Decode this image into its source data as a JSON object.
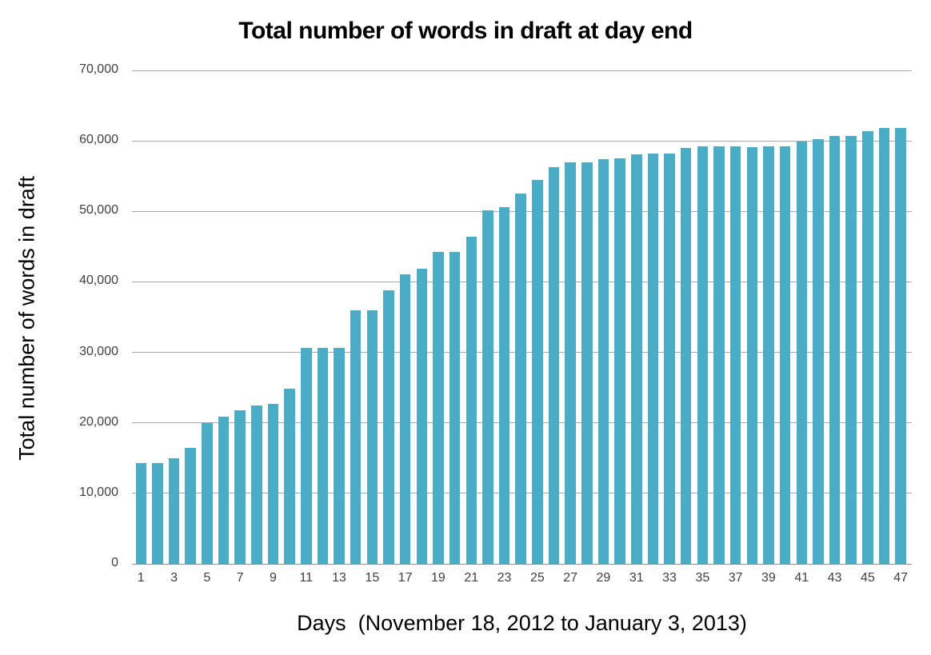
{
  "chart_data": {
    "type": "bar",
    "title": "Total number of words in draft at day end",
    "xlabel": "Days  (November 18, 2012 to January 3, 2013)",
    "ylabel": "Total number of words in draft",
    "categories": [
      1,
      2,
      3,
      4,
      5,
      6,
      7,
      8,
      9,
      10,
      11,
      12,
      13,
      14,
      15,
      16,
      17,
      18,
      19,
      20,
      21,
      22,
      23,
      24,
      25,
      26,
      27,
      28,
      29,
      30,
      31,
      32,
      33,
      34,
      35,
      36,
      37,
      38,
      39,
      40,
      41,
      42,
      43,
      44,
      45,
      46,
      47
    ],
    "values": [
      14300,
      14300,
      15000,
      16400,
      20000,
      20900,
      21800,
      22500,
      22700,
      24800,
      30600,
      30600,
      30600,
      36000,
      36000,
      38800,
      41100,
      41900,
      44200,
      44200,
      46400,
      50200,
      50600,
      52500,
      54500,
      56300,
      57000,
      57000,
      57400,
      57500,
      58100,
      58200,
      58200,
      59000,
      59200,
      59200,
      59200,
      59100,
      59200,
      59200,
      59900,
      60300,
      60700,
      60700,
      61400,
      61800,
      61800
    ],
    "xtick_labels": [
      "1",
      "3",
      "5",
      "7",
      "9",
      "11",
      "13",
      "15",
      "17",
      "19",
      "21",
      "23",
      "25",
      "27",
      "29",
      "31",
      "33",
      "35",
      "37",
      "39",
      "41",
      "43",
      "45",
      "47"
    ],
    "ytick_values": [
      0,
      10000,
      20000,
      30000,
      40000,
      50000,
      60000,
      70000
    ],
    "ytick_labels": [
      "0",
      "10,000",
      "20,000",
      "30,000",
      "40,000",
      "50,000",
      "60,000",
      "70,000"
    ],
    "ylim": [
      0,
      70000
    ],
    "grid": "horizontal gridlines every 10,000",
    "legend": "none",
    "colors": {
      "bar": "#4BACC6",
      "gridline": "#A6A6A6",
      "axis_line": "#8C8C8C",
      "tick_label": "#404040",
      "title": "#000000"
    }
  }
}
